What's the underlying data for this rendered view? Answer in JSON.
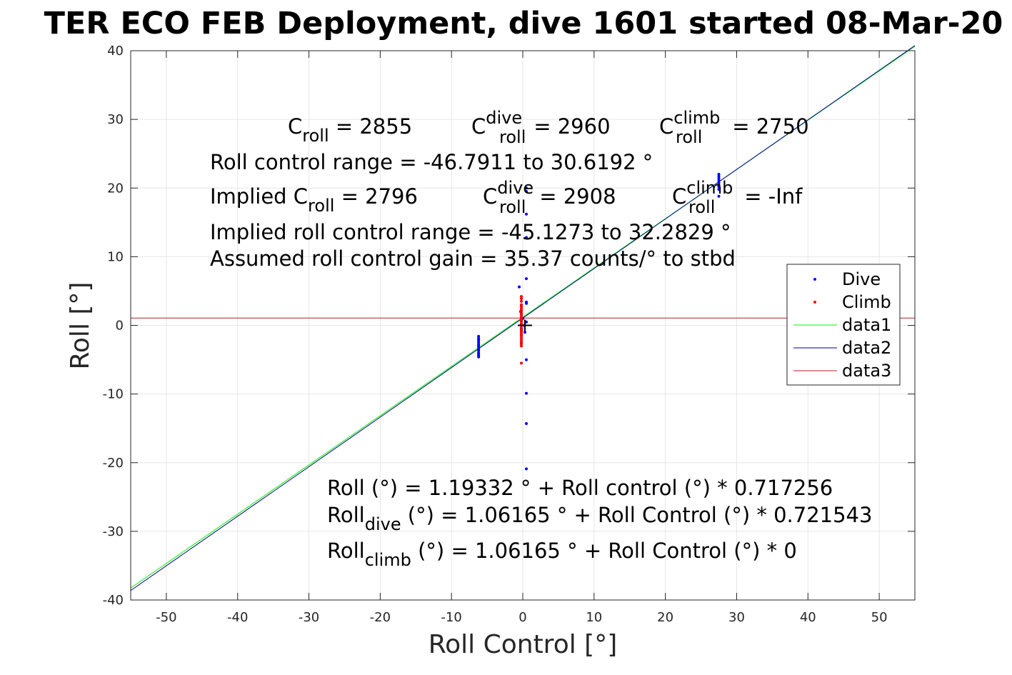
{
  "chart_data": {
    "type": "scatter",
    "title": "TER ECO FEB Deployment, dive 1601 started 08-Mar-20",
    "xlabel": "Roll Control [°]",
    "ylabel": "Roll [°]",
    "xlim": [
      -55,
      55
    ],
    "ylim": [
      -40,
      40
    ],
    "xticks": [
      -50,
      -40,
      -30,
      -20,
      -10,
      0,
      10,
      20,
      30,
      40,
      50
    ],
    "yticks": [
      -40,
      -30,
      -20,
      -10,
      0,
      10,
      20,
      30,
      40
    ],
    "xtick_labels": [
      "-50",
      "-40",
      "-30",
      "-20",
      "-10",
      "0",
      "10",
      "20",
      "30",
      "40",
      "50"
    ],
    "ytick_labels": [
      "-40",
      "-30",
      "-20",
      "-10",
      "0",
      "10",
      "20",
      "30",
      "40"
    ],
    "grid": true,
    "legend_position": "right",
    "series": [
      {
        "name": "Dive",
        "kind": "points",
        "color": "#0000ff",
        "x": [
          -6.2,
          -6.2,
          -6.2,
          -6.2,
          -6.2,
          -6.2,
          -6.2,
          -6.2,
          -6.2,
          -6.2,
          -6.2,
          -6.2,
          -6.2,
          -6.2,
          -6.2,
          0.5,
          0.5,
          0.5,
          0.5,
          0.5,
          0.5,
          0.5,
          0.5,
          0.5,
          0.5,
          0.5,
          0.5,
          -0.5,
          -0.3,
          0.0,
          0.2,
          -0.2,
          0.3,
          27.5,
          27.5,
          27.5,
          27.5,
          27.5,
          27.5,
          27.5,
          27.5,
          27.5
        ],
        "y": [
          -1.6,
          -1.9,
          -2.2,
          -2.5,
          -2.8,
          -3.1,
          -3.4,
          -3.7,
          -4.0,
          -4.2,
          -4.4,
          -4.6,
          -2.0,
          -3.0,
          -3.6,
          20.0,
          19.5,
          16.2,
          12.8,
          6.8,
          3.4,
          3.2,
          -5.0,
          -9.9,
          -14.3,
          -20.9,
          0.5,
          5.6,
          2.0,
          1.0,
          0.0,
          -0.5,
          -1.0,
          22.0,
          21.7,
          21.4,
          21.1,
          20.8,
          20.5,
          20.2,
          19.8,
          18.8
        ]
      },
      {
        "name": "Climb",
        "kind": "points",
        "color": "#ff0000",
        "x": [
          -0.2,
          -0.2,
          -0.2,
          -0.2,
          -0.2,
          -0.2,
          -0.2,
          -0.2,
          -0.2,
          -0.2,
          -0.2,
          -0.2,
          -0.2,
          -0.2,
          -0.2,
          -0.2,
          -0.2,
          -0.2,
          -0.2,
          -0.2,
          -0.2,
          -0.2,
          -0.2,
          -0.2,
          -0.2,
          -0.2,
          -0.2,
          -0.2,
          -0.2,
          -0.2,
          -0.2,
          -0.2,
          -0.2
        ],
        "y": [
          4.2,
          3.9,
          3.0,
          2.7,
          2.4,
          2.1,
          1.8,
          1.5,
          1.2,
          0.9,
          0.6,
          0.3,
          0.0,
          -0.3,
          -0.6,
          -0.9,
          -1.2,
          -1.5,
          -1.8,
          -2.1,
          -2.4,
          -2.7,
          -3.0,
          -5.5,
          3.5,
          2.9,
          2.2,
          1.6,
          0.8,
          0.2,
          -0.8,
          -1.4,
          -2.6
        ]
      },
      {
        "name": "data1",
        "kind": "line",
        "color": "#00ff00",
        "x": [
          -55,
          55
        ],
        "y": [
          -38.255,
          40.642
        ]
      },
      {
        "name": "data2",
        "kind": "line",
        "color": "#00008b",
        "x": [
          -55,
          55
        ],
        "y": [
          -38.623,
          40.747
        ]
      },
      {
        "name": "data3",
        "kind": "line",
        "color": "#b22222",
        "x": [
          -55,
          55
        ],
        "y": [
          1.06165,
          1.06165
        ]
      }
    ],
    "cross_marker": {
      "x": 0.3,
      "y": 0.0,
      "color": "#000000"
    },
    "annotations": {
      "c_roll": {
        "base": "C",
        "sub": "roll",
        "tail": " = 2855"
      },
      "c_roll_dive": {
        "base": "C",
        "sup": "dive",
        "sub": "roll",
        "tail": " = 2960"
      },
      "c_roll_climb": {
        "base": "C",
        "sup": "climb",
        "sub": "roll",
        "tail": " = 2750"
      },
      "roll_control_range": "Roll control range = -46.7911 to 30.6192 °",
      "implied_c_roll": {
        "base": "Implied C",
        "sub": "roll",
        "tail": " = 2796"
      },
      "implied_c_roll_dive": {
        "base": "C",
        "sup": "dive",
        "sub": "roll",
        "tail": " = 2908"
      },
      "implied_c_roll_climb": {
        "base": "C",
        "sup": "climb",
        "sub": "roll",
        "tail": " = -Inf"
      },
      "implied_range": "Implied roll control range = -45.1273 to 32.2829 °",
      "assumed_gain": "Assumed roll control gain = 35.37 counts/° to stbd",
      "fit_all": "Roll (°) = 1.19332 ° + Roll control (°) * 0.717256",
      "fit_dive": {
        "base": "Roll",
        "sub": "dive",
        "tail": " (°) = 1.06165 ° + Roll Control (°) * 0.721543"
      },
      "fit_climb": {
        "base": "Roll",
        "sub": "climb",
        "tail": " (°) = 1.06165 ° + Roll Control (°) * 0"
      }
    }
  }
}
